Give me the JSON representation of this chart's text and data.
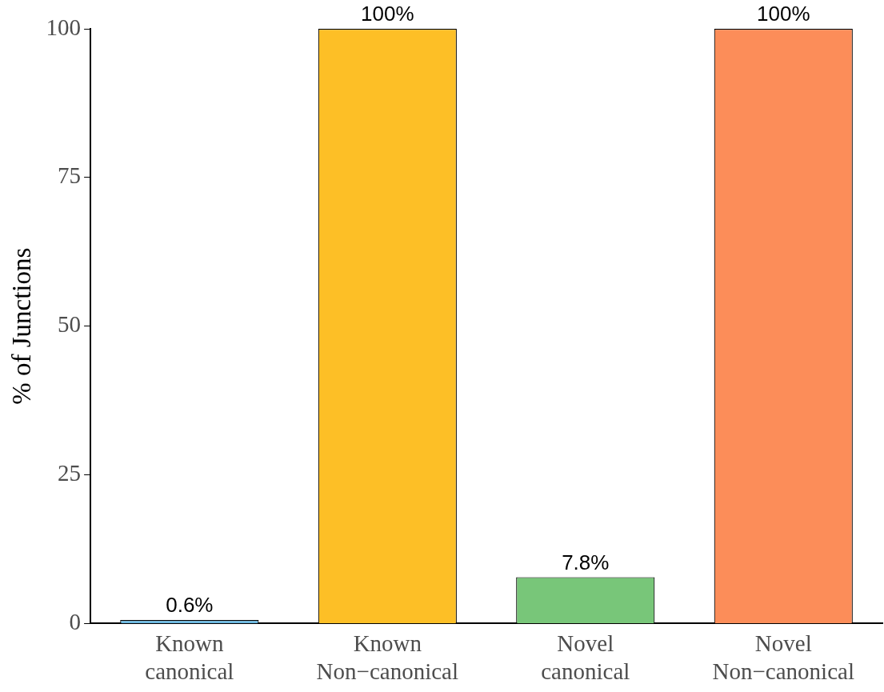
{
  "chart_data": {
    "type": "bar",
    "ylabel": "% of Junctions",
    "categories": [
      "Known canonical",
      "Known Non−canonical",
      "Novel canonical",
      "Novel Non−canonical"
    ],
    "values": [
      0.6,
      100,
      7.8,
      100
    ],
    "colors": [
      "#6bb8e0",
      "#fdbf26",
      "#78c679",
      "#fc8d59"
    ],
    "value_labels": [
      "0.6%",
      "100%",
      "7.8%",
      "100%"
    ],
    "ylim": [
      0,
      100
    ],
    "yticks": [
      0,
      25,
      50,
      75,
      100
    ],
    "grid": false,
    "legend": false
  }
}
